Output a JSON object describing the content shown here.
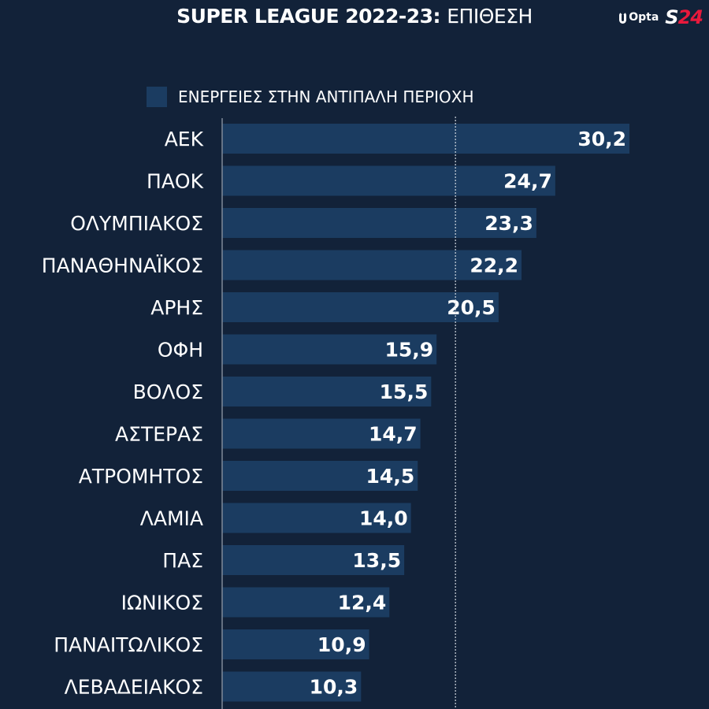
{
  "header": {
    "title_bold": "SUPER LEAGUE 2022-23:",
    "title_light": "ΕΠΙΘΕΣΗ",
    "logo_opta": "Opta",
    "logo_s24_s": "S",
    "logo_s24_n": "24"
  },
  "colors": {
    "background": "#122239",
    "bar": "#1b3c61",
    "accent": "#e8193c"
  },
  "chart_data": {
    "type": "bar",
    "orientation": "horizontal",
    "title": "SUPER LEAGUE 2022-23: ΕΠΙΘΕΣΗ",
    "legend": {
      "position": "top",
      "entries": [
        "ΕΝΕΡΓΕΙΕΣ ΣΤΗΝ ΑΝΤΙΠΑΛΗ ΠΕΡΙΟΧΗ"
      ]
    },
    "categories": [
      "ΑΕΚ",
      "ΠΑΟΚ",
      "ΟΛΥΜΠΙΑΚΟΣ",
      "ΠΑΝΑΘΗΝΑΪΚΟΣ",
      "ΑΡΗΣ",
      "ΟΦΗ",
      "ΒΟΛΟΣ",
      "ΑΣΤΕΡΑΣ",
      "ΑΤΡΟΜΗΤΟΣ",
      "ΛΑΜΙΑ",
      "ΠΑΣ",
      "ΙΩΝΙΚΟΣ",
      "ΠΑΝΑΙΤΩΛΙΚΟΣ",
      "ΛΕΒΑΔΕΙΑΚΟΣ"
    ],
    "series": [
      {
        "name": "ΕΝΕΡΓΕΙΕΣ ΣΤΗΝ ΑΝΤΙΠΑΛΗ ΠΕΡΙΟΧΗ",
        "values": [
          30.2,
          24.7,
          23.3,
          22.2,
          20.5,
          15.9,
          15.5,
          14.7,
          14.5,
          14.0,
          13.5,
          12.4,
          10.9,
          10.3
        ]
      }
    ],
    "labels": [
      "30,2",
      "24,7",
      "23,3",
      "22,2",
      "20,5",
      "15,9",
      "15,5",
      "14,7",
      "14,5",
      "14,0",
      "13,5",
      "12,4",
      "10,9",
      "10,3"
    ],
    "reference_line": {
      "value": 17.3,
      "style": "dotted"
    },
    "xlim": [
      0,
      30.2
    ],
    "grid": false
  }
}
